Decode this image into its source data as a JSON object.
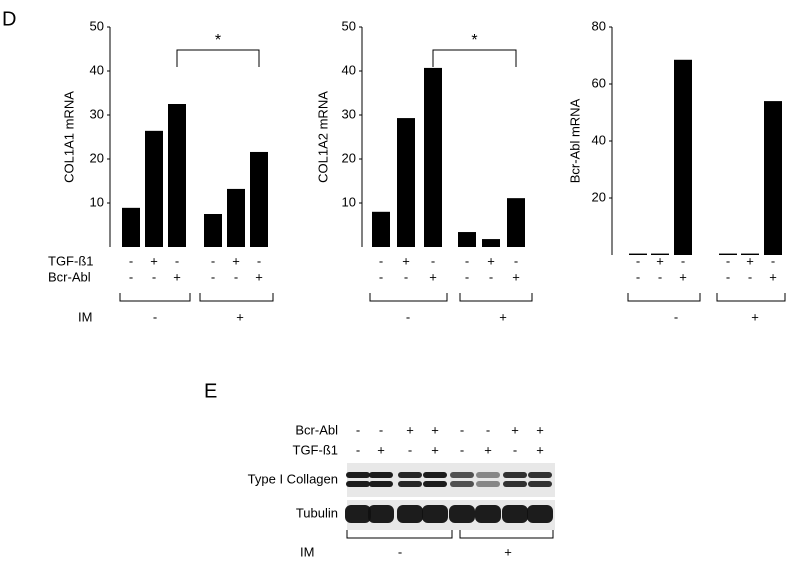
{
  "panel": "D",
  "row_labels": [
    "TGF-ß1",
    "Bcr-Abl"
  ],
  "group_label": "IM",
  "chart_data": [
    {
      "type": "bar",
      "ylabel": "COL1A1 mRNA",
      "color": "#000000",
      "values": [
        8.9,
        26.4,
        32.5,
        7.5,
        13.2,
        21.6
      ],
      "ylim": [
        0,
        50
      ],
      "yticks": [
        10,
        20,
        30,
        40,
        50
      ],
      "rows": [
        [
          "-",
          "+",
          "-",
          "-",
          "+",
          "-"
        ],
        [
          "-",
          "-",
          "+",
          "-",
          "-",
          "+"
        ]
      ],
      "groups": [
        "-",
        "+"
      ],
      "annotation": "*"
    },
    {
      "type": "bar",
      "ylabel": "COL1A2 mRNA",
      "color": "#000000",
      "values": [
        8,
        29.3,
        40.7,
        3.4,
        1.8,
        11.1
      ],
      "ylim": [
        0,
        50
      ],
      "yticks": [
        10,
        20,
        30,
        40,
        50
      ],
      "rows": [
        [
          "-",
          "+",
          "-",
          "-",
          "+",
          "-"
        ],
        [
          "-",
          "-",
          "+",
          "-",
          "-",
          "+"
        ]
      ],
      "groups": [
        "-",
        "+"
      ],
      "annotation": "*"
    },
    {
      "type": "bar",
      "ylabel": "Bcr-Abl mRNA",
      "color": "#000000",
      "values": [
        0.5,
        0.5,
        68.5,
        0.5,
        0.5,
        54
      ],
      "ylim": [
        0,
        80
      ],
      "yticks": [
        20,
        40,
        60,
        80
      ],
      "rows": [
        [
          "-",
          "+",
          "-",
          "-",
          "+",
          "-"
        ],
        [
          "-",
          "-",
          "+",
          "-",
          "-",
          "+"
        ]
      ],
      "groups": [
        "-",
        "+"
      ]
    }
  ],
  "blot": {
    "panel": "E",
    "rows": [
      {
        "name": "Bcr-Abl",
        "labels": [
          "-",
          "-",
          "+",
          "+",
          "-",
          "-",
          "+",
          "+"
        ]
      },
      {
        "name": "TGF-ß1",
        "labels": [
          "-",
          "+",
          "-",
          "+",
          "-",
          "+",
          "-",
          "+"
        ]
      }
    ],
    "bands": [
      "Type I Collagen",
      "Tubulin"
    ],
    "group_label": "IM",
    "groups": [
      "-",
      "+"
    ]
  }
}
